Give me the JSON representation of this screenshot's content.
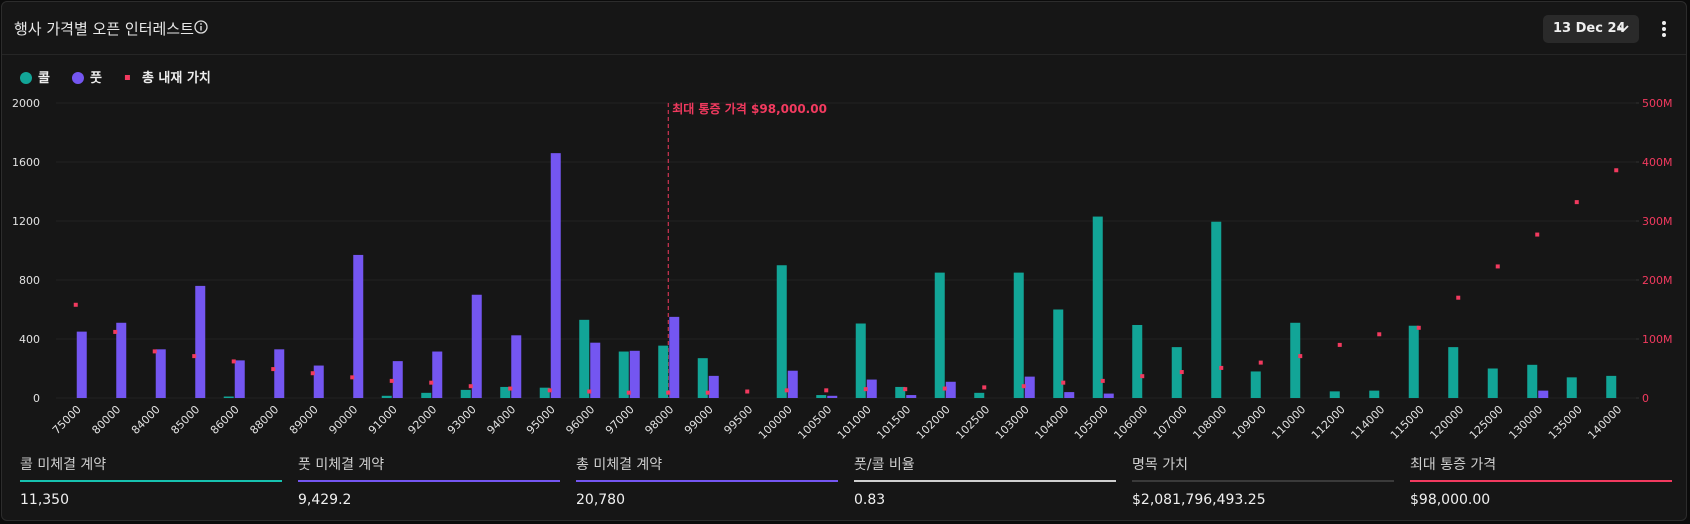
{
  "header": {
    "title": "행사 가격별 오픈 인터레스트",
    "date": "13 Dec 24"
  },
  "chart_data": {
    "type": "bar",
    "categories": [
      "75000",
      "80000",
      "84000",
      "85000",
      "86000",
      "88000",
      "89000",
      "90000",
      "91000",
      "92000",
      "93000",
      "94000",
      "95000",
      "96000",
      "97000",
      "98000",
      "99000",
      "99500",
      "100000",
      "100500",
      "101000",
      "101500",
      "102000",
      "102500",
      "103000",
      "104000",
      "105000",
      "106000",
      "107000",
      "108000",
      "109000",
      "110000",
      "112000",
      "114000",
      "115000",
      "120000",
      "125000",
      "130000",
      "135000",
      "140000"
    ],
    "series": [
      {
        "name": "콜",
        "color": "#12a597",
        "values": [
          0,
          0,
          0,
          0,
          10,
          0,
          0,
          0,
          15,
          35,
          55,
          75,
          70,
          530,
          315,
          355,
          270,
          0,
          900,
          20,
          505,
          75,
          850,
          35,
          850,
          600,
          1230,
          495,
          345,
          1195,
          180,
          510,
          45,
          50,
          490,
          345,
          200,
          225,
          140,
          150
        ]
      },
      {
        "name": "풋",
        "color": "#7456f1",
        "values": [
          450,
          510,
          330,
          760,
          255,
          330,
          220,
          970,
          250,
          315,
          700,
          425,
          1660,
          375,
          320,
          550,
          150,
          0,
          185,
          15,
          125,
          20,
          110,
          0,
          145,
          40,
          30,
          0,
          0,
          0,
          0,
          0,
          0,
          0,
          0,
          0,
          0,
          50,
          0,
          0
        ]
      },
      {
        "name": "총 내재 가치",
        "color": "#f23a5f",
        "type": "scatter",
        "axis": "y2",
        "values": [
          158,
          112,
          79,
          71,
          62,
          49,
          42,
          35,
          29,
          26,
          20,
          16,
          13,
          11,
          9,
          9,
          9,
          11,
          13,
          13,
          15,
          15,
          16,
          18,
          20,
          26,
          29,
          37,
          44,
          51,
          60,
          71,
          90,
          108,
          119,
          170,
          223,
          277,
          332,
          386
        ]
      }
    ],
    "ylim": [
      0,
      2000
    ],
    "yticks": [
      0,
      400,
      800,
      1200,
      1600,
      2000
    ],
    "y2lim": [
      0,
      500
    ],
    "y2ticks": [
      0,
      {
        "value": 100,
        "label": "100M"
      },
      {
        "value": 200,
        "label": "200M"
      },
      {
        "value": 300,
        "label": "300M"
      },
      {
        "value": 400,
        "label": "400M"
      },
      {
        "value": 500,
        "label": "500M"
      }
    ],
    "grid": true,
    "annotation": {
      "text": "최대 통증 가격 $98,000.00",
      "x": "98000"
    }
  },
  "stats": [
    {
      "label": "콜 미체결 계약",
      "value": "11,350",
      "color": "#17c2b0"
    },
    {
      "label": "풋 미체결 계약",
      "value": "9,429.2",
      "color": "#7456f1"
    },
    {
      "label": "총 미체결 계약",
      "value": "20,780",
      "color": "#7456f1"
    },
    {
      "label": "풋/콜 비율",
      "value": "0.83",
      "color": "#cfcfcf"
    },
    {
      "label": "명목 가치",
      "value": "$2,081,796,493.25",
      "color": "#3a3a3a"
    },
    {
      "label": "최대 통증 가격",
      "value": "$98,000.00",
      "color": "#f23a5f"
    }
  ]
}
